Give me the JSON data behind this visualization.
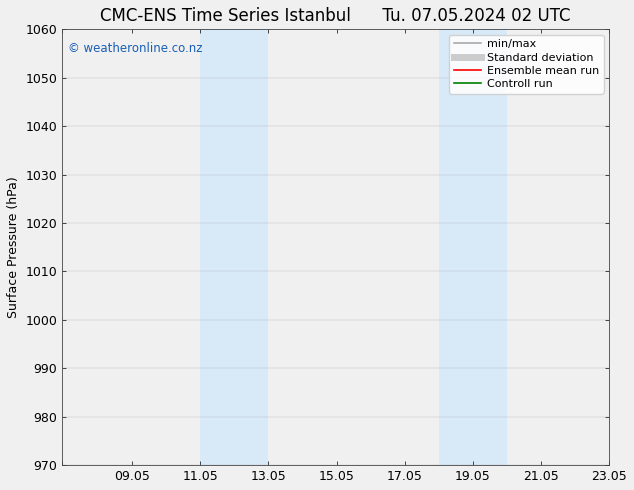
{
  "title": "CMC-ENS Time Series Istanbul      Tu. 07.05.2024 02 UTC",
  "ylabel": "Surface Pressure (hPa)",
  "ylim": [
    970,
    1060
  ],
  "yticks": [
    970,
    980,
    990,
    1000,
    1010,
    1020,
    1030,
    1040,
    1050,
    1060
  ],
  "xlim_start": 7.0,
  "xlim_end": 23.05,
  "xticks": [
    7.0,
    9.05,
    11.05,
    13.05,
    15.05,
    17.05,
    19.05,
    21.05,
    23.05
  ],
  "xticklabels": [
    "",
    "09.05",
    "11.05",
    "13.05",
    "15.05",
    "17.05",
    "19.05",
    "21.05",
    "23.05"
  ],
  "shaded_bands": [
    {
      "xmin": 11.05,
      "xmax": 13.05
    },
    {
      "xmin": 18.05,
      "xmax": 20.05
    }
  ],
  "band_color": "#d8eaf7",
  "watermark_text": "© weatheronline.co.nz",
  "watermark_color": "#1a5fb4",
  "background_color": "#f0f0f0",
  "plot_bg_color": "#f0f0f0",
  "legend_entries": [
    {
      "label": "min/max",
      "color": "#aaaaaa",
      "lw": 1.2
    },
    {
      "label": "Standard deviation",
      "color": "#cccccc",
      "lw": 5
    },
    {
      "label": "Ensemble mean run",
      "color": "#ff0000",
      "lw": 1.2
    },
    {
      "label": "Controll run",
      "color": "#008000",
      "lw": 1.2
    }
  ],
  "title_fontsize": 12,
  "tick_fontsize": 9,
  "label_fontsize": 9,
  "legend_fontsize": 8
}
